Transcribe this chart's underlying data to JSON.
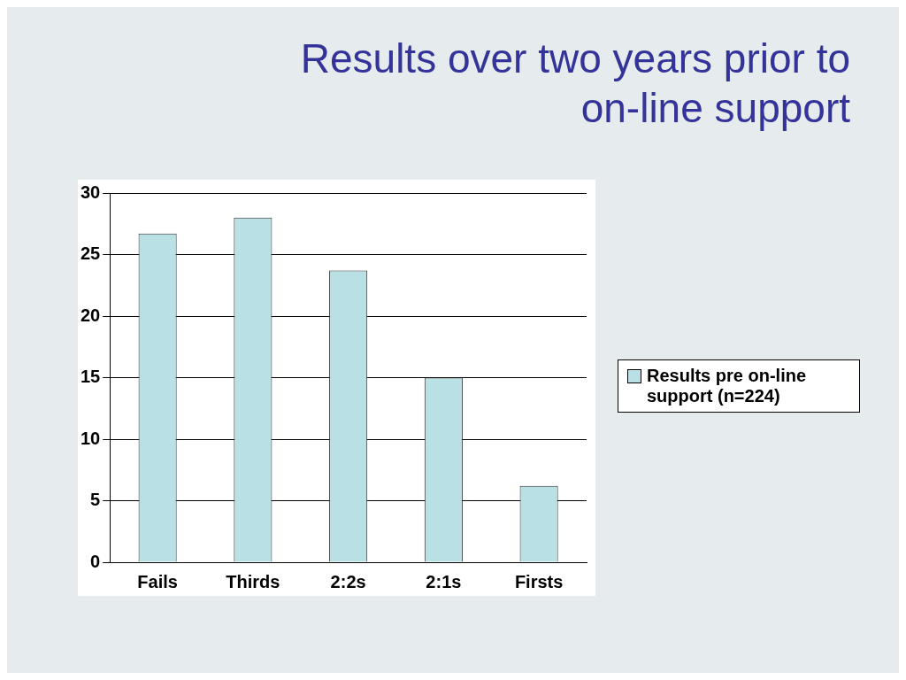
{
  "chart_data": {
    "type": "bar",
    "title": "Results over two years prior to on-line support",
    "categories": [
      "Fails",
      "Thirds",
      "2:2s",
      "2:1s",
      "Firsts"
    ],
    "series": [
      {
        "name": "Results pre on-line support (n=224)",
        "color": "#b9e0e4",
        "values": [
          26.7,
          28,
          23.7,
          15,
          6.2
        ]
      }
    ],
    "ylim": [
      0,
      30
    ],
    "yticks": [
      0,
      5,
      10,
      15,
      20,
      25,
      30
    ],
    "grid": "y",
    "legend": "right"
  }
}
